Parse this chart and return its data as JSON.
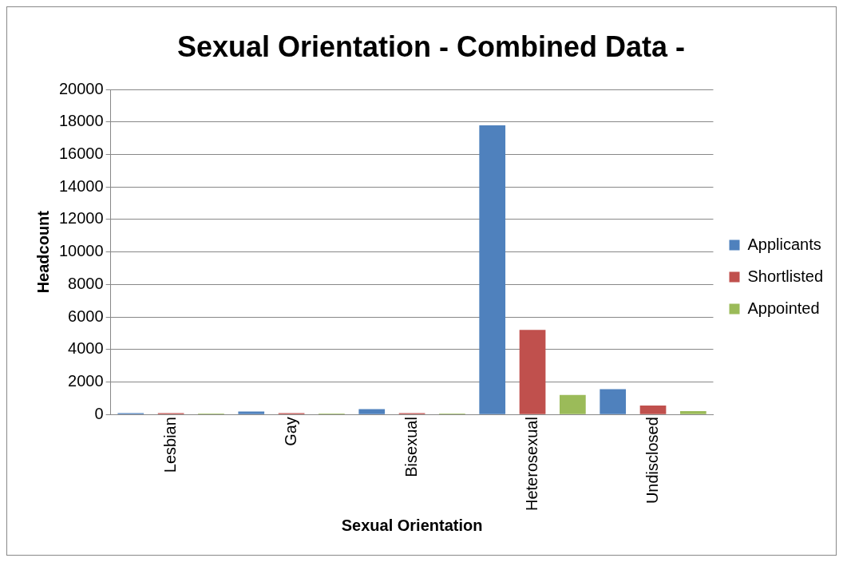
{
  "chart_data": {
    "type": "bar",
    "title": "Sexual Orientation - Combined Data -",
    "xlabel": "Sexual Orientation",
    "ylabel": "Headcount",
    "categories": [
      "Lesbian",
      "Gay",
      "Bisexual",
      "Heterosexual",
      "Undisclosed"
    ],
    "series": [
      {
        "name": "Applicants",
        "color": "#4f81bd",
        "values": [
          80,
          180,
          330,
          17800,
          1550
        ]
      },
      {
        "name": "Shortlisted",
        "color": "#c0504d",
        "values": [
          80,
          80,
          80,
          5200,
          550
        ]
      },
      {
        "name": "Appointed",
        "color": "#9bbb59",
        "values": [
          60,
          60,
          60,
          1200,
          200
        ]
      }
    ],
    "ylim": [
      0,
      20000
    ],
    "yticks": [
      0,
      2000,
      4000,
      6000,
      8000,
      10000,
      12000,
      14000,
      16000,
      18000,
      20000
    ],
    "grid": "y",
    "legend": "right"
  }
}
